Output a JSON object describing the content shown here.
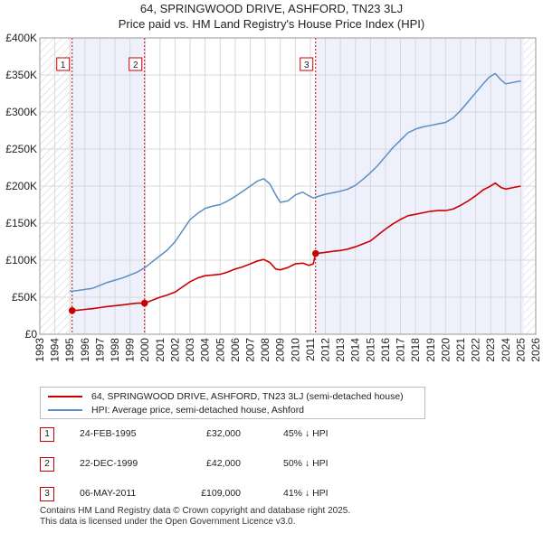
{
  "title": "64, SPRINGWOOD DRIVE, ASHFORD, TN23 3LJ",
  "subtitle": "Price paid vs. HM Land Registry's House Price Index (HPI)",
  "chart_data": {
    "type": "line",
    "xlim": [
      1993.0,
      2026.0
    ],
    "ylim": [
      0,
      400000
    ],
    "y_ticks": [
      {
        "value": 0,
        "label": "£0"
      },
      {
        "value": 50000,
        "label": "£50K"
      },
      {
        "value": 100000,
        "label": "£100K"
      },
      {
        "value": 150000,
        "label": "£150K"
      },
      {
        "value": 200000,
        "label": "£200K"
      },
      {
        "value": 250000,
        "label": "£250K"
      },
      {
        "value": 300000,
        "label": "£300K"
      },
      {
        "value": 350000,
        "label": "£350K"
      },
      {
        "value": 400000,
        "label": "£400K"
      }
    ],
    "x_ticks": [
      "1993",
      "1994",
      "1995",
      "1996",
      "1997",
      "1998",
      "1999",
      "2000",
      "2001",
      "2002",
      "2003",
      "2004",
      "2005",
      "2006",
      "2007",
      "2008",
      "2009",
      "2010",
      "2011",
      "2012",
      "2013",
      "2014",
      "2015",
      "2016",
      "2017",
      "2018",
      "2019",
      "2020",
      "2021",
      "2022",
      "2023",
      "2024",
      "2025",
      "2026"
    ],
    "grid": true,
    "shaded_ranges": [
      [
        1995.15,
        1999.97
      ],
      [
        2011.35,
        2025.2
      ]
    ],
    "hatched_ranges": [
      [
        1993.0,
        1995.15
      ],
      [
        2025.2,
        2026.0
      ]
    ],
    "series": [
      {
        "name": "64, SPRINGWOOD DRIVE, ASHFORD, TN23 3LJ (semi-detached house)",
        "color": "#cc0000",
        "x": [
          1995.15,
          1995.5,
          1996.0,
          1996.5,
          1997.0,
          1997.5,
          1998.0,
          1998.5,
          1999.0,
          1999.5,
          1999.97,
          2000.5,
          2001.0,
          2001.5,
          2002.0,
          2002.5,
          2003.0,
          2003.5,
          2004.0,
          2004.5,
          2005.0,
          2005.5,
          2006.0,
          2006.5,
          2007.0,
          2007.5,
          2007.9,
          2008.3,
          2008.7,
          2009.0,
          2009.5,
          2010.0,
          2010.5,
          2010.9,
          2011.2,
          2011.35,
          2011.8,
          2012.5,
          2013.0,
          2013.5,
          2014.0,
          2014.5,
          2015.0,
          2015.5,
          2016.0,
          2016.5,
          2017.0,
          2017.5,
          2018.0,
          2018.5,
          2019.0,
          2019.5,
          2020.0,
          2020.5,
          2021.0,
          2021.5,
          2022.0,
          2022.5,
          2022.9,
          2023.3,
          2023.7,
          2024.0,
          2024.5,
          2025.0
        ],
        "values": [
          32000,
          32500,
          33500,
          34500,
          36000,
          37500,
          38500,
          39500,
          41000,
          42000,
          42000,
          46000,
          50000,
          53000,
          57000,
          64000,
          71000,
          76000,
          79000,
          80000,
          81000,
          84000,
          88000,
          91000,
          95000,
          99000,
          101000,
          97000,
          88000,
          87000,
          90000,
          95000,
          96000,
          93000,
          95000,
          109000,
          110000,
          112000,
          113000,
          115000,
          118000,
          122000,
          126000,
          134000,
          142000,
          149000,
          155000,
          160000,
          162000,
          164000,
          166000,
          167000,
          167000,
          169000,
          174000,
          180000,
          187000,
          195000,
          199000,
          204000,
          198000,
          196000,
          198000,
          200000
        ]
      },
      {
        "name": "HPI: Average price, semi-detached house, Ashford",
        "color": "#5b8ec4",
        "x": [
          1995.0,
          1995.5,
          1996.0,
          1996.5,
          1997.0,
          1997.5,
          1998.0,
          1998.5,
          1999.0,
          1999.5,
          2000.0,
          2000.5,
          2001.0,
          2001.5,
          2002.0,
          2002.5,
          2003.0,
          2003.5,
          2004.0,
          2004.5,
          2005.0,
          2005.5,
          2006.0,
          2006.5,
          2007.0,
          2007.5,
          2007.9,
          2008.3,
          2008.7,
          2009.0,
          2009.5,
          2010.0,
          2010.5,
          2010.9,
          2011.2,
          2011.5,
          2012.0,
          2012.5,
          2013.0,
          2013.5,
          2014.0,
          2014.5,
          2015.0,
          2015.5,
          2016.0,
          2016.5,
          2017.0,
          2017.5,
          2018.0,
          2018.5,
          2019.0,
          2019.5,
          2020.0,
          2020.5,
          2021.0,
          2021.5,
          2022.0,
          2022.5,
          2022.9,
          2023.3,
          2023.7,
          2024.0,
          2024.5,
          2025.0
        ],
        "values": [
          58000,
          59000,
          60500,
          62000,
          66000,
          70000,
          73000,
          76000,
          80000,
          84000,
          90000,
          98000,
          106000,
          114000,
          125000,
          140000,
          155000,
          163000,
          170000,
          173000,
          175000,
          180000,
          186000,
          193000,
          200000,
          207000,
          210000,
          203000,
          188000,
          178000,
          180000,
          188000,
          192000,
          187000,
          184000,
          186000,
          189000,
          191000,
          193000,
          196000,
          201000,
          209000,
          218000,
          228000,
          240000,
          252000,
          262000,
          272000,
          277000,
          280000,
          282000,
          284000,
          286000,
          292000,
          302000,
          314000,
          326000,
          338000,
          347000,
          352000,
          343000,
          338000,
          340000,
          342000
        ]
      }
    ],
    "markers": [
      {
        "label": "1",
        "x": 1995.15,
        "y": 32000
      },
      {
        "label": "2",
        "x": 1999.97,
        "y": 42000
      },
      {
        "label": "3",
        "x": 2011.35,
        "y": 109000
      }
    ]
  },
  "legend": {
    "items": [
      {
        "label": "64, SPRINGWOOD DRIVE, ASHFORD, TN23 3LJ (semi-detached house)",
        "color": "#cc0000"
      },
      {
        "label": "HPI: Average price, semi-detached house, Ashford",
        "color": "#5b8ec4"
      }
    ]
  },
  "sales": [
    {
      "num": "1",
      "date": "24-FEB-1995",
      "price": "£32,000",
      "hpi": "45% ↓ HPI"
    },
    {
      "num": "2",
      "date": "22-DEC-1999",
      "price": "£42,000",
      "hpi": "50% ↓ HPI"
    },
    {
      "num": "3",
      "date": "06-MAY-2011",
      "price": "£109,000",
      "hpi": "41% ↓ HPI"
    }
  ],
  "footer": {
    "line1": "Contains HM Land Registry data © Crown copyright and database right 2025.",
    "line2": "This data is licensed under the Open Government Licence v3.0."
  }
}
